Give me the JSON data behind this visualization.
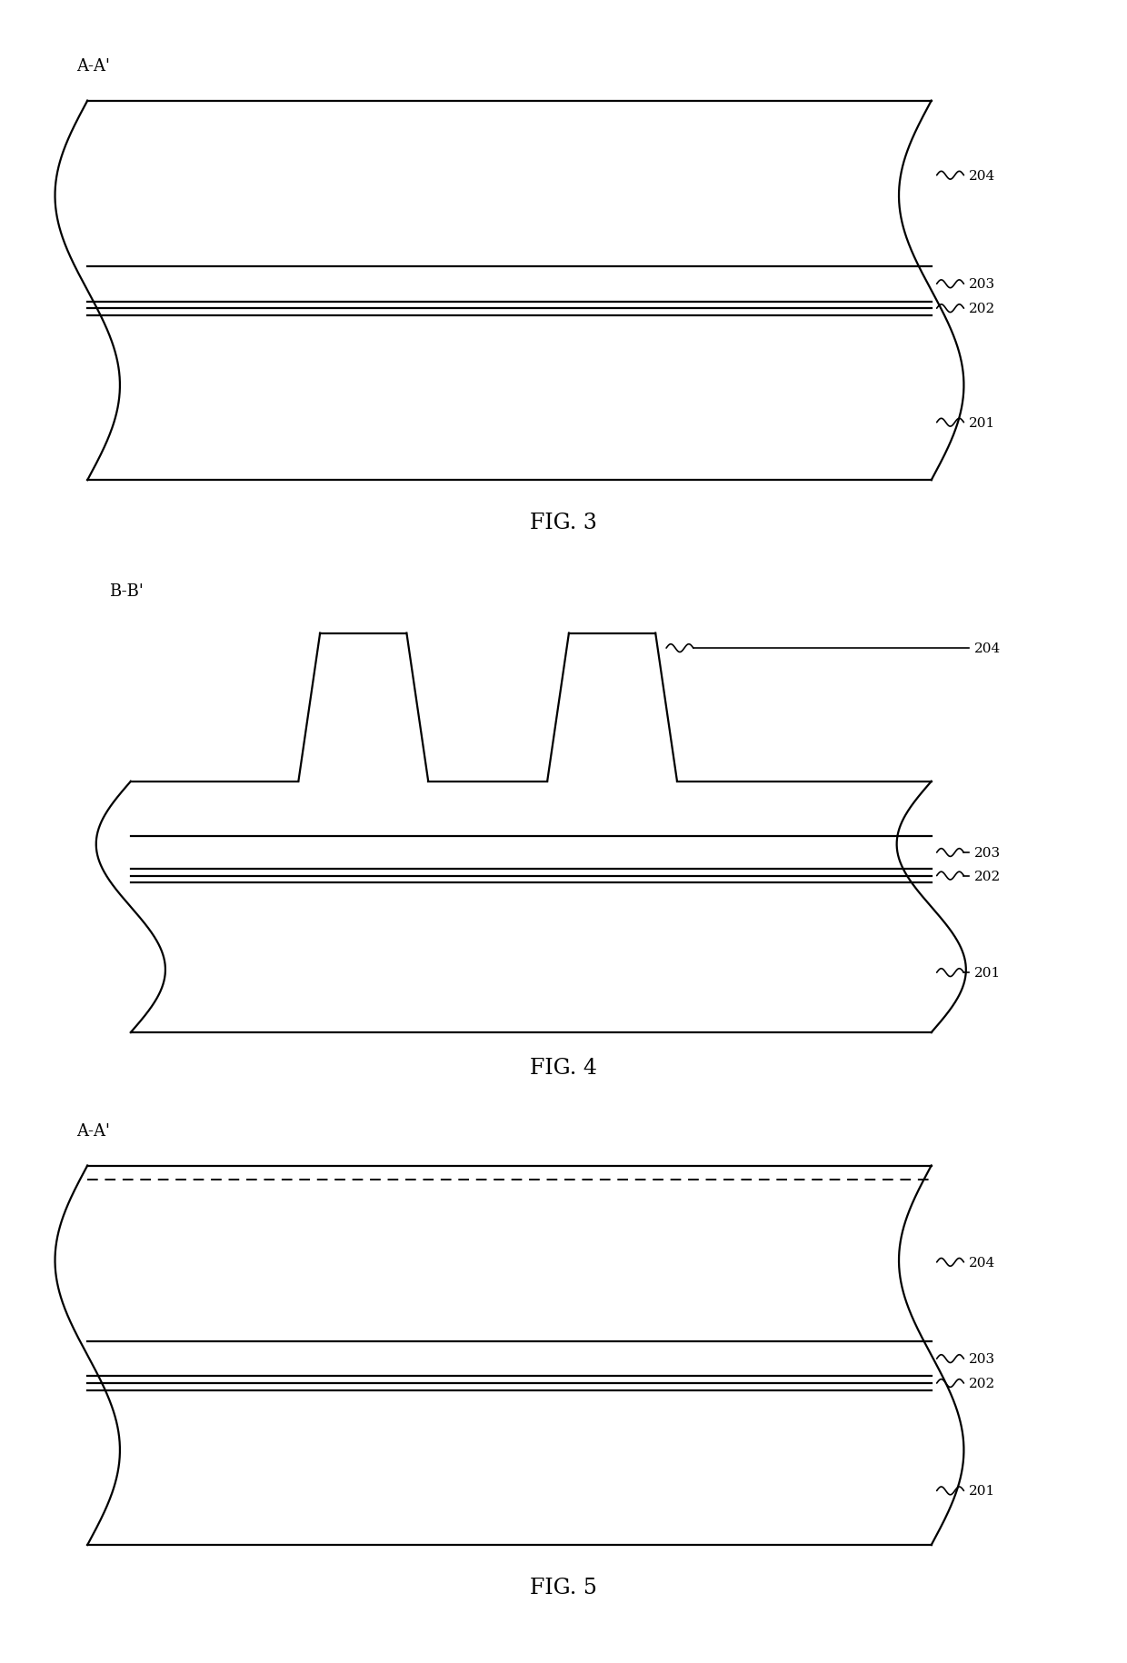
{
  "bg_color": "#ffffff",
  "line_color": "#000000",
  "fig3": {
    "cross_label": "A-A'",
    "fig_label": "FIG. 3"
  },
  "fig4": {
    "cross_label": "B-B'",
    "fig_label": "FIG. 4"
  },
  "fig5": {
    "cross_label": "A-A'",
    "fig_label": "FIG. 5"
  }
}
